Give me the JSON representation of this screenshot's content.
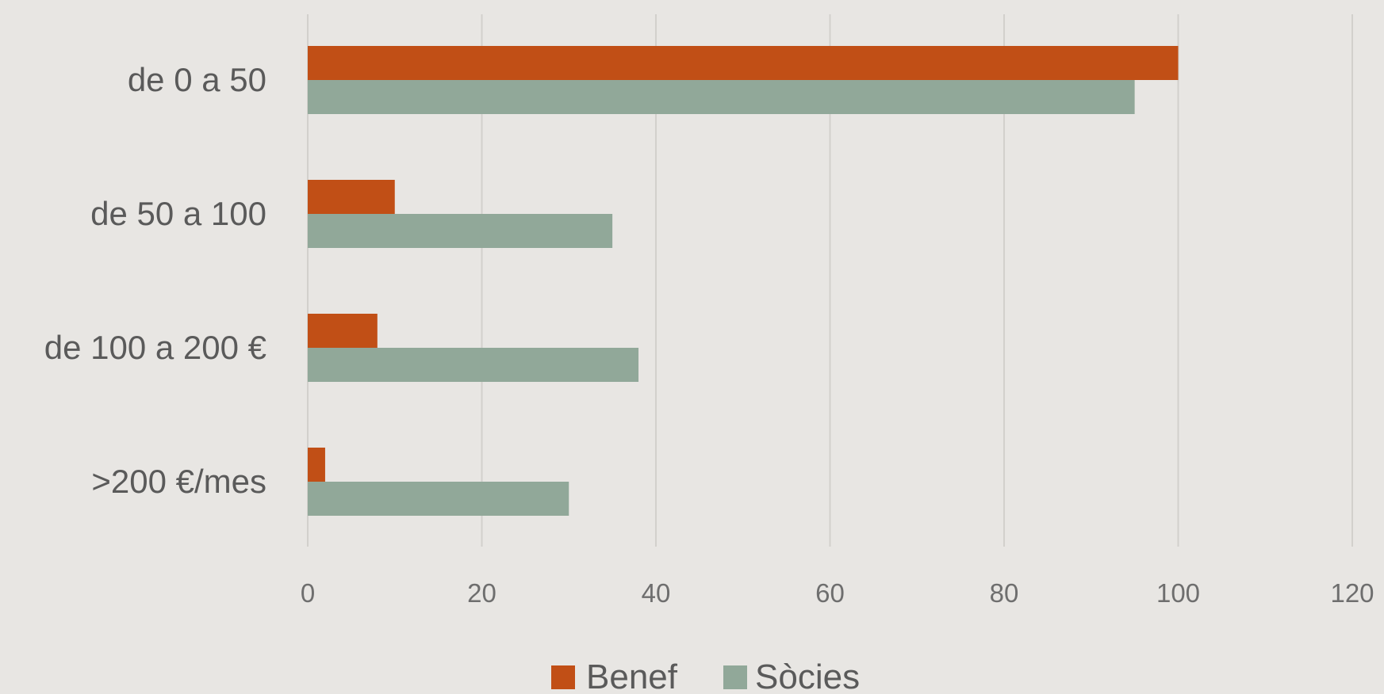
{
  "chart_data": {
    "type": "bar",
    "orientation": "horizontal",
    "categories": [
      "de 0 a 50",
      "de 50 a 100",
      "de 100 a 200 €",
      ">200 €/mes"
    ],
    "series": [
      {
        "name": "Benef",
        "color": "#c14f16",
        "values": [
          100,
          10,
          8,
          2
        ]
      },
      {
        "name": "Sòcies",
        "color": "#91a899",
        "values": [
          95,
          35,
          38,
          30
        ]
      }
    ],
    "xlim": [
      0,
      120
    ],
    "xticks": [
      "0",
      "20",
      "40",
      "60",
      "80",
      "100",
      "120"
    ],
    "grid": "vertical",
    "legend": "bottom-center"
  }
}
